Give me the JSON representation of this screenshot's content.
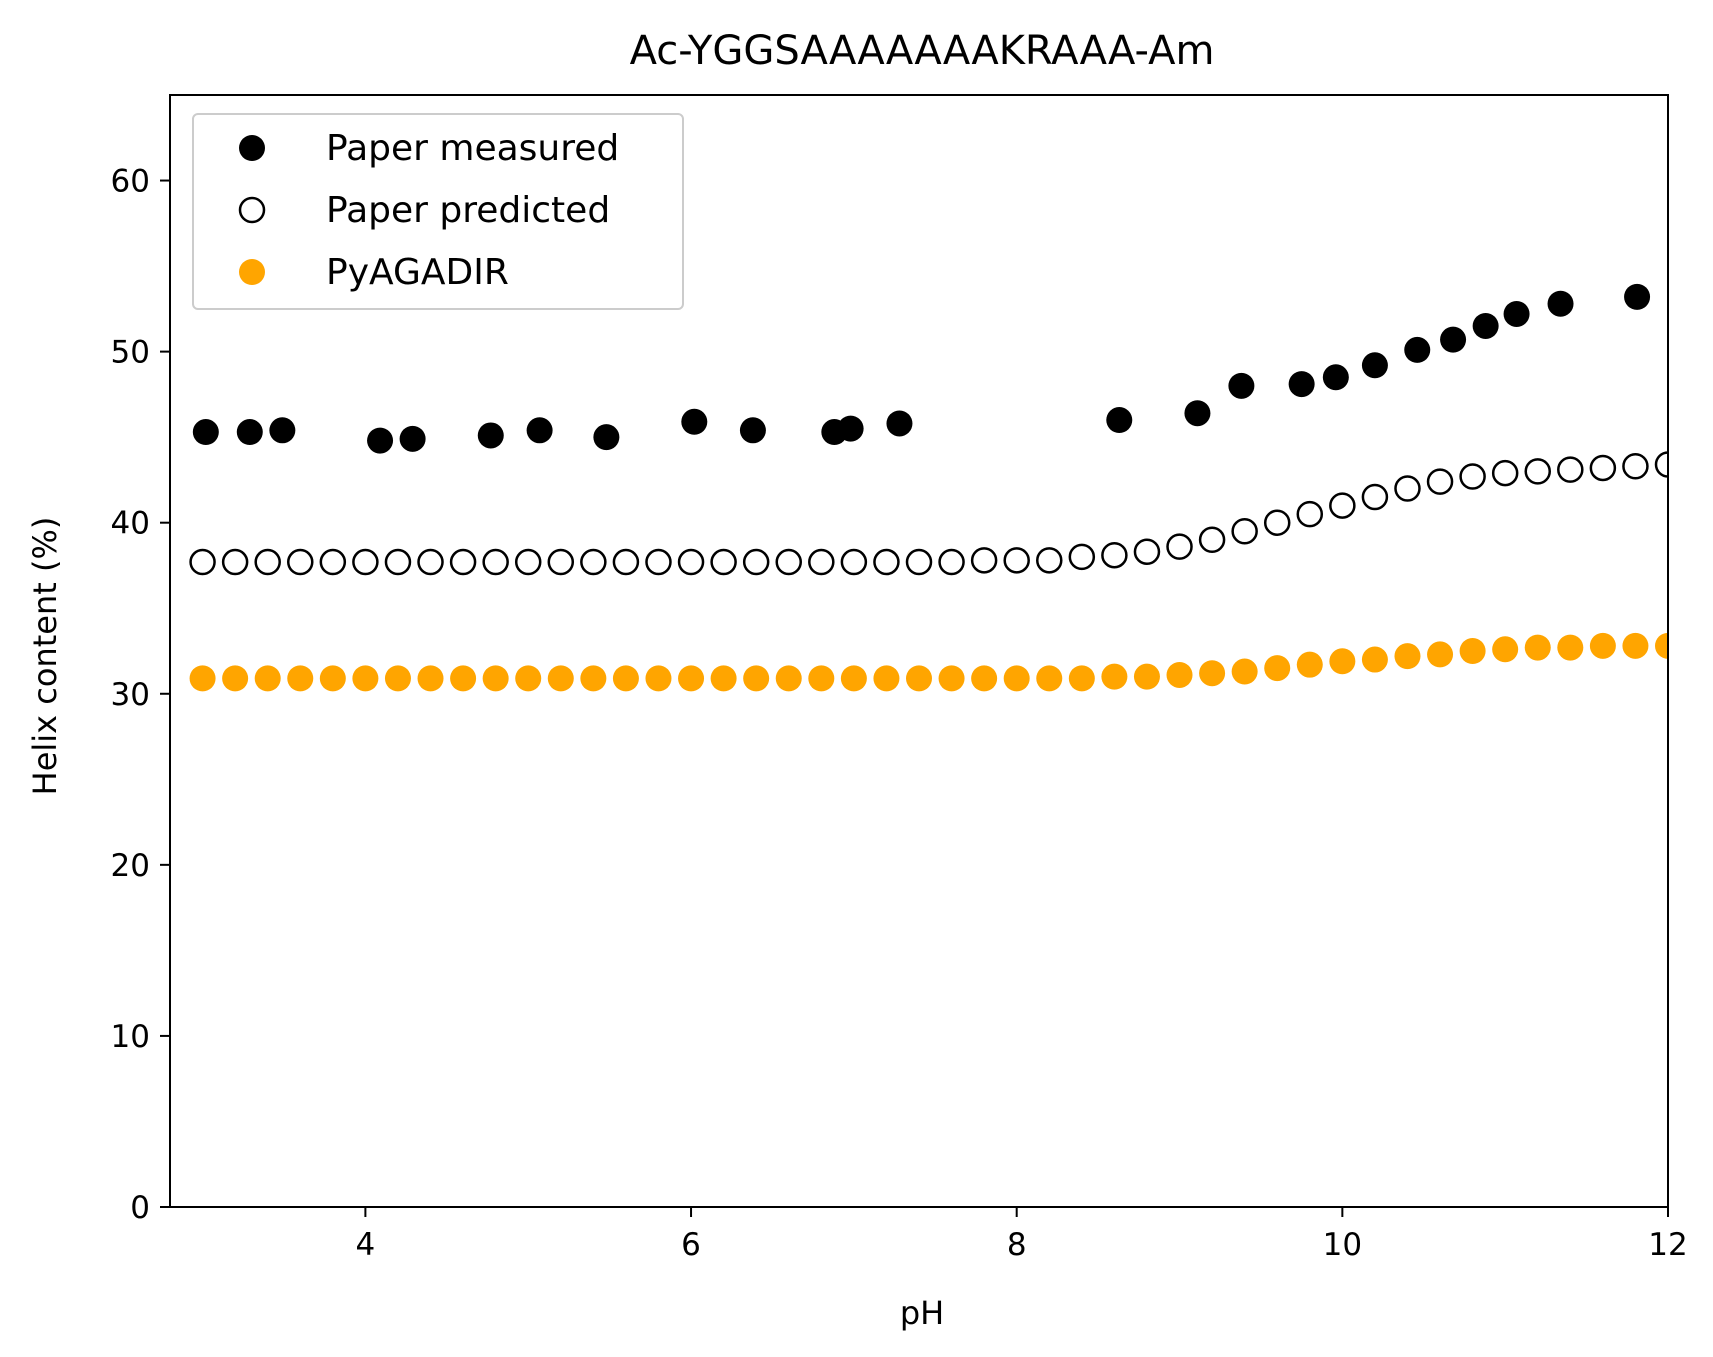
{
  "chart_data": {
    "type": "scatter",
    "title": "Ac-YGGSAAAAAAAKRAAA-Am",
    "xlabel": "pH",
    "ylabel": "Helix content (%)",
    "xlim": [
      2.8,
      12
    ],
    "ylim": [
      0,
      65
    ],
    "xticks": [
      4,
      6,
      8,
      10,
      12
    ],
    "yticks": [
      0,
      10,
      20,
      30,
      40,
      50,
      60
    ],
    "grid": false,
    "legend_position": "upper-left",
    "series": [
      {
        "name": "Paper measured",
        "marker": "filled-circle",
        "color": "#000000",
        "x": [
          3.02,
          3.29,
          3.49,
          4.09,
          4.29,
          4.77,
          5.07,
          5.48,
          6.02,
          6.38,
          6.88,
          6.98,
          7.28,
          8.63,
          9.11,
          9.38,
          9.75,
          9.96,
          10.2,
          10.46,
          10.68,
          10.88,
          11.07,
          11.34,
          11.81
        ],
        "y": [
          45.3,
          45.3,
          45.4,
          44.8,
          44.9,
          45.1,
          45.4,
          45.0,
          45.9,
          45.4,
          45.3,
          45.5,
          45.8,
          46.0,
          46.4,
          48.0,
          48.1,
          48.5,
          49.2,
          50.1,
          50.7,
          51.5,
          52.2,
          52.8,
          53.2
        ]
      },
      {
        "name": "Paper predicted",
        "marker": "open-circle",
        "color": "#000000",
        "x": [
          3.0,
          3.2,
          3.4,
          3.6,
          3.8,
          4.0,
          4.2,
          4.4,
          4.6,
          4.8,
          5.0,
          5.2,
          5.4,
          5.6,
          5.8,
          6.0,
          6.2,
          6.4,
          6.6,
          6.8,
          7.0,
          7.2,
          7.4,
          7.6,
          7.8,
          8.0,
          8.2,
          8.4,
          8.6,
          8.8,
          9.0,
          9.2,
          9.4,
          9.6,
          9.8,
          10.0,
          10.2,
          10.4,
          10.6,
          10.8,
          11.0,
          11.2,
          11.4,
          11.6,
          11.8,
          12.0
        ],
        "y": [
          37.7,
          37.7,
          37.7,
          37.7,
          37.7,
          37.7,
          37.7,
          37.7,
          37.7,
          37.7,
          37.7,
          37.7,
          37.7,
          37.7,
          37.7,
          37.7,
          37.7,
          37.7,
          37.7,
          37.7,
          37.7,
          37.7,
          37.7,
          37.7,
          37.8,
          37.8,
          37.8,
          38.0,
          38.1,
          38.3,
          38.6,
          39.0,
          39.5,
          40.0,
          40.5,
          41.0,
          41.5,
          42.0,
          42.4,
          42.7,
          42.9,
          43.0,
          43.1,
          43.2,
          43.3,
          43.4
        ]
      },
      {
        "name": "PyAGADIR",
        "marker": "filled-circle",
        "color": "#FFA500",
        "x": [
          3.0,
          3.2,
          3.4,
          3.6,
          3.8,
          4.0,
          4.2,
          4.4,
          4.6,
          4.8,
          5.0,
          5.2,
          5.4,
          5.6,
          5.8,
          6.0,
          6.2,
          6.4,
          6.6,
          6.8,
          7.0,
          7.2,
          7.4,
          7.6,
          7.8,
          8.0,
          8.2,
          8.4,
          8.6,
          8.8,
          9.0,
          9.2,
          9.4,
          9.6,
          9.8,
          10.0,
          10.2,
          10.4,
          10.6,
          10.8,
          11.0,
          11.2,
          11.4,
          11.6,
          11.8,
          12.0
        ],
        "y": [
          30.9,
          30.9,
          30.9,
          30.9,
          30.9,
          30.9,
          30.9,
          30.9,
          30.9,
          30.9,
          30.9,
          30.9,
          30.9,
          30.9,
          30.9,
          30.9,
          30.9,
          30.9,
          30.9,
          30.9,
          30.9,
          30.9,
          30.9,
          30.9,
          30.9,
          30.9,
          30.9,
          30.9,
          31.0,
          31.0,
          31.1,
          31.2,
          31.3,
          31.5,
          31.7,
          31.9,
          32.0,
          32.2,
          32.3,
          32.5,
          32.6,
          32.7,
          32.7,
          32.8,
          32.8,
          32.8
        ]
      }
    ]
  }
}
